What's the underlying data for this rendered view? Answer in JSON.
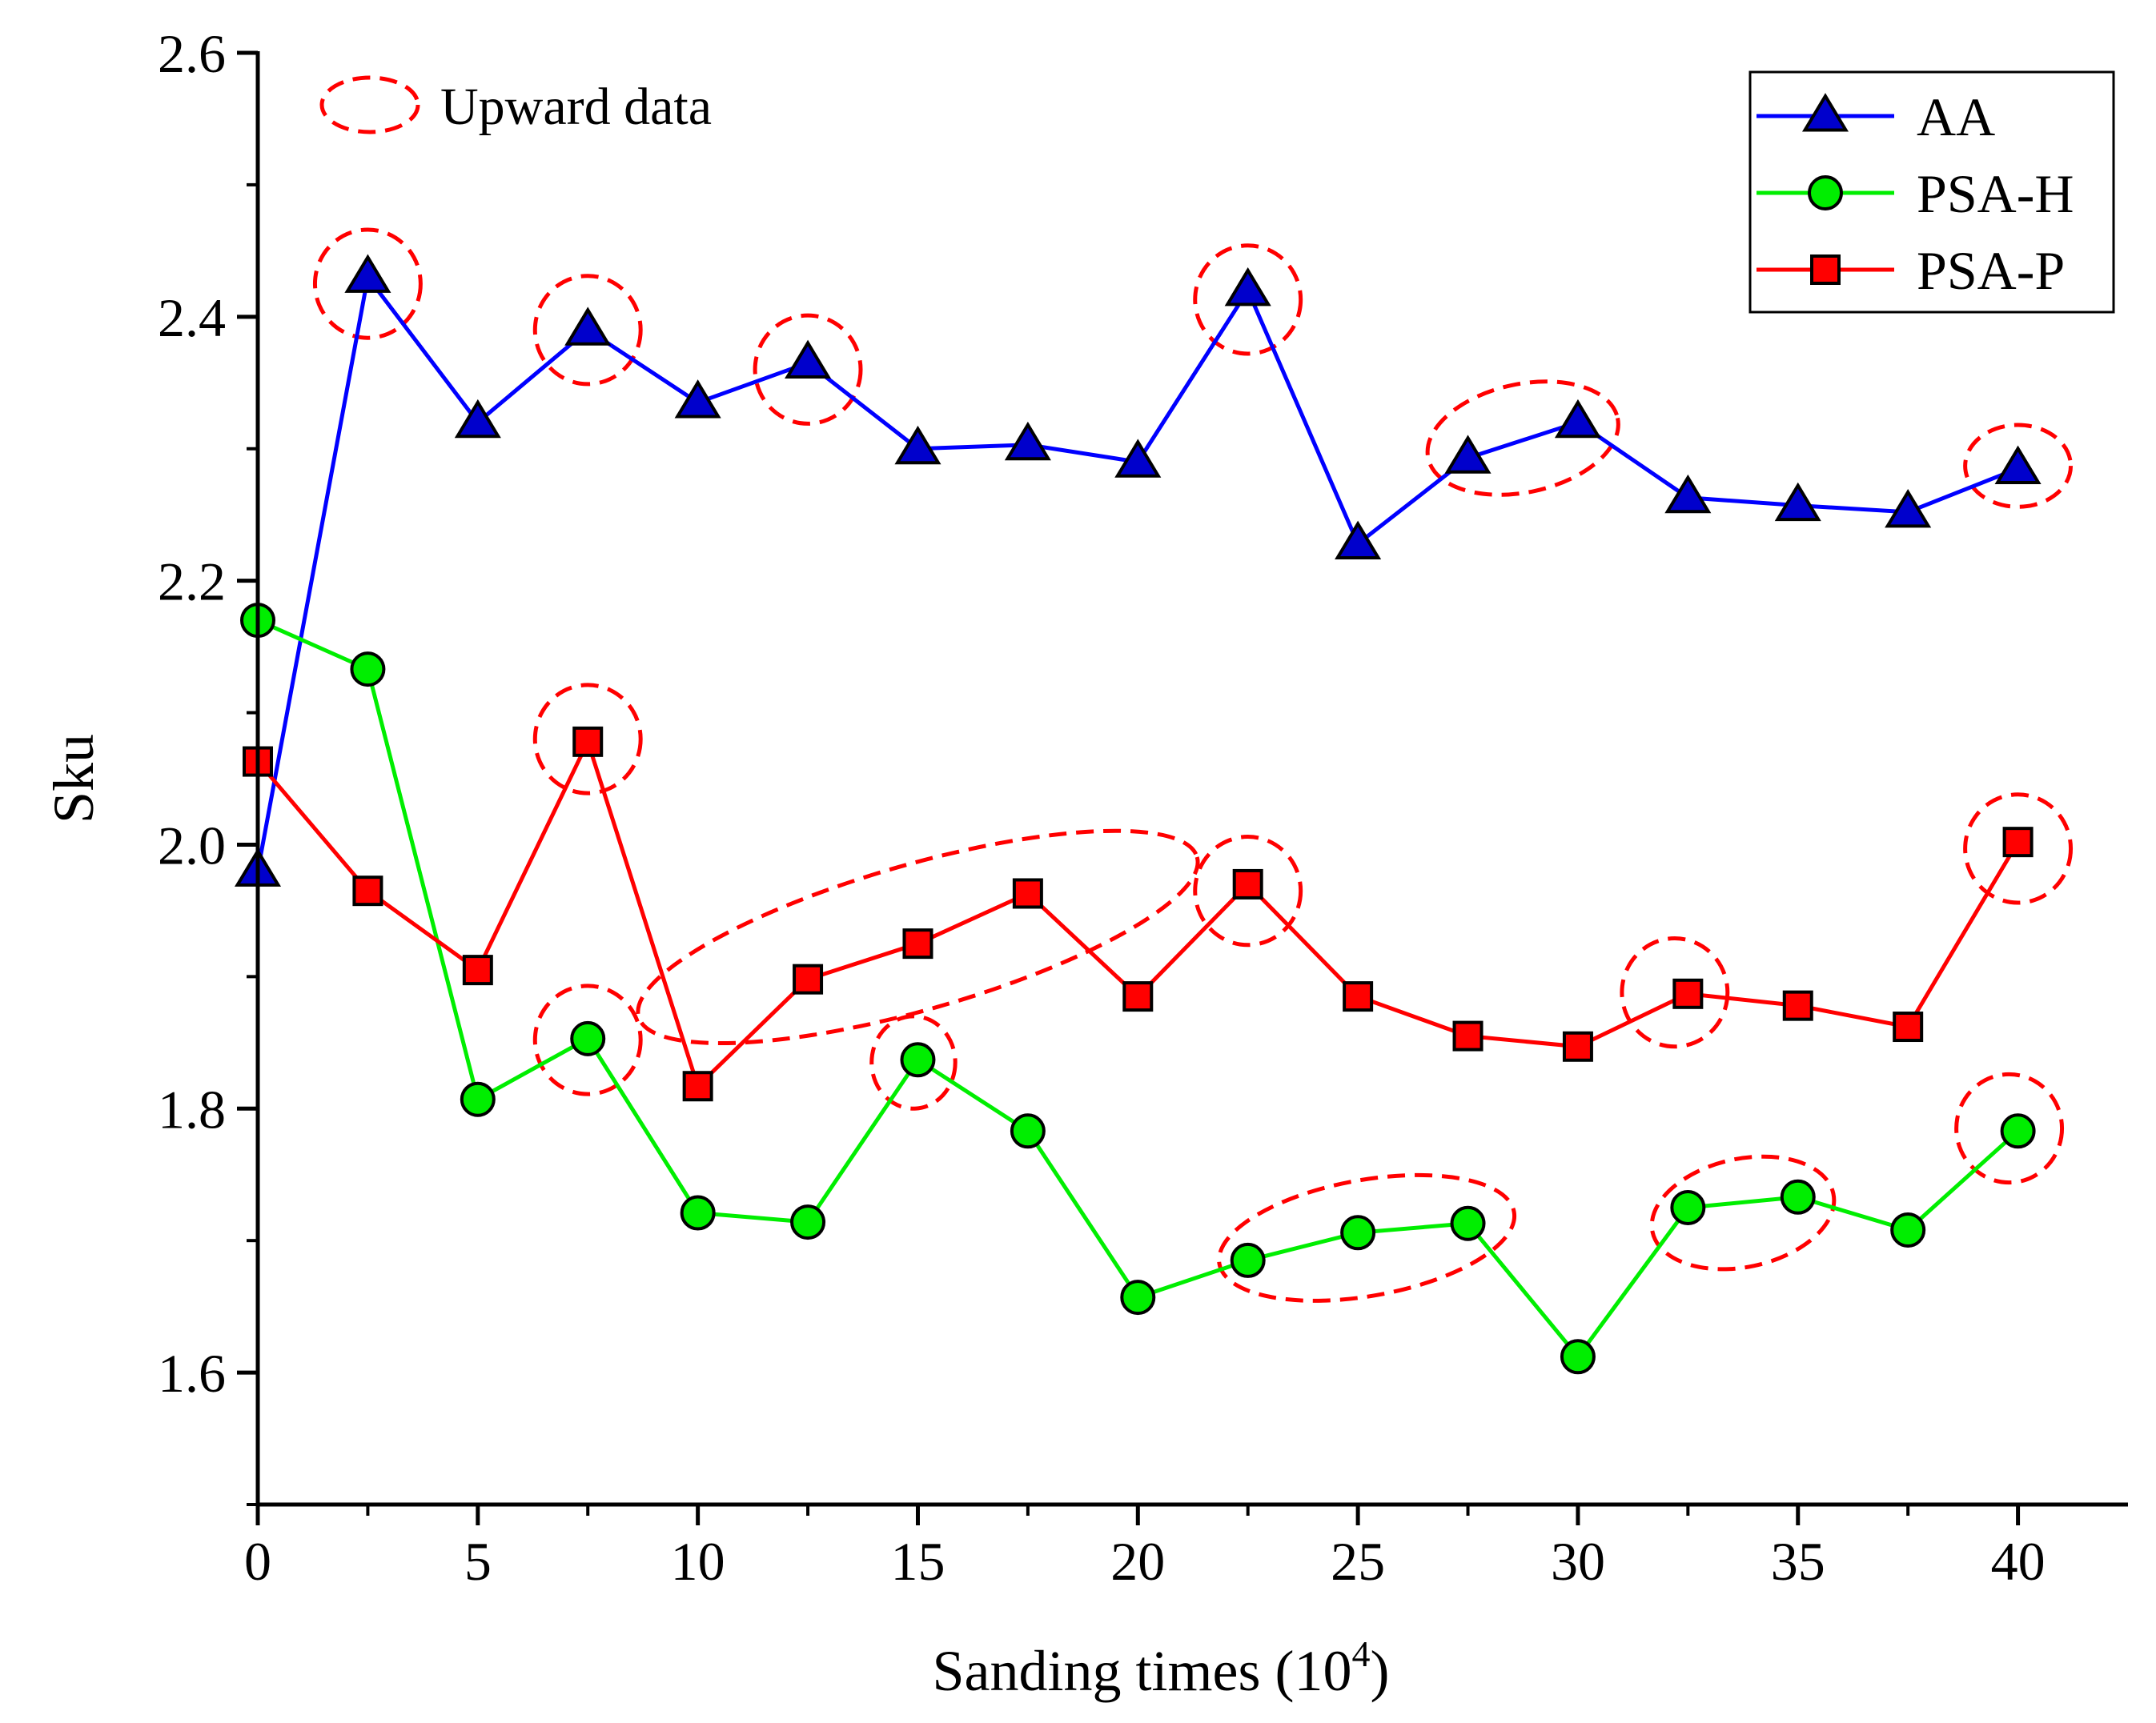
{
  "chart_data": {
    "type": "line",
    "xlabel": "Sanding times (10",
    "xlabel_sup": "4",
    "xlabel_close": ")",
    "ylabel": "Sku",
    "xlim": [
      0,
      42.5
    ],
    "ylim": [
      1.5,
      2.6
    ],
    "x_ticks": [
      0,
      5,
      10,
      15,
      20,
      25,
      30,
      35,
      40
    ],
    "x_tick_labels": [
      "0",
      "5",
      "10",
      "15",
      "20",
      "25",
      "30",
      "35",
      "40"
    ],
    "y_ticks": [
      1.6,
      1.8,
      2.0,
      2.2,
      2.4,
      2.6
    ],
    "y_tick_labels": [
      "1.6",
      "1.8",
      "2.0",
      "2.2",
      "2.4",
      "2.6"
    ],
    "grid": false,
    "legend_position": "top-right",
    "x": [
      0,
      2.5,
      5,
      7.5,
      10,
      12.5,
      15,
      17.5,
      20,
      22.5,
      25,
      27.5,
      30,
      32.5,
      35,
      37.5,
      40
    ],
    "series": [
      {
        "name": "AA",
        "color": "#0000ff",
        "marker": "triangle",
        "marker_fill": "#0000cc",
        "values": [
          1.98,
          2.43,
          2.32,
          2.39,
          2.335,
          2.365,
          2.3,
          2.303,
          2.29,
          2.42,
          2.228,
          2.293,
          2.32,
          2.263,
          2.257,
          2.252,
          2.285
        ]
      },
      {
        "name": "PSA-H",
        "color": "#00ee00",
        "marker": "circle",
        "marker_fill": "#00ee00",
        "values": [
          2.17,
          2.133,
          1.807,
          1.853,
          1.721,
          1.714,
          1.837,
          1.783,
          1.657,
          1.685,
          1.706,
          1.713,
          1.612,
          1.725,
          1.733,
          1.708,
          1.783
        ]
      },
      {
        "name": "PSA-P",
        "color": "#ff0000",
        "marker": "square",
        "marker_fill": "#ff0000",
        "values": [
          2.063,
          1.965,
          1.905,
          2.078,
          1.817,
          1.898,
          1.925,
          1.963,
          1.885,
          1.97,
          1.885,
          1.855,
          1.847,
          1.887,
          1.878,
          1.862,
          2.002
        ]
      }
    ],
    "annotation": {
      "label": "Upward data",
      "color": "#ff0000",
      "highlights": [
        {
          "cx": 2.5,
          "cy": 2.425,
          "rx": 1.2,
          "ry": 0.041,
          "angle": 0
        },
        {
          "cx": 7.5,
          "cy": 2.39,
          "rx": 1.2,
          "ry": 0.041,
          "angle": 0
        },
        {
          "cx": 12.5,
          "cy": 2.36,
          "rx": 1.2,
          "ry": 0.041,
          "angle": 0
        },
        {
          "cx": 22.5,
          "cy": 2.413,
          "rx": 1.2,
          "ry": 0.041,
          "angle": 0
        },
        {
          "cx": 28.75,
          "cy": 2.308,
          "rx": 2.2,
          "ry": 0.041,
          "angle": -12
        },
        {
          "cx": 40,
          "cy": 2.287,
          "rx": 1.2,
          "ry": 0.031,
          "angle": 0
        },
        {
          "cx": 7.5,
          "cy": 2.08,
          "rx": 1.2,
          "ry": 0.041,
          "angle": 0
        },
        {
          "cx": 15,
          "cy": 1.93,
          "rx": 6.6,
          "ry": 0.055,
          "angle": -16
        },
        {
          "cx": 22.5,
          "cy": 1.965,
          "rx": 1.2,
          "ry": 0.041,
          "angle": 0
        },
        {
          "cx": 32.2,
          "cy": 1.888,
          "rx": 1.2,
          "ry": 0.041,
          "angle": 0
        },
        {
          "cx": 40,
          "cy": 1.997,
          "rx": 1.2,
          "ry": 0.041,
          "angle": 0
        },
        {
          "cx": 7.5,
          "cy": 1.852,
          "rx": 1.2,
          "ry": 0.041,
          "angle": 0
        },
        {
          "cx": 14.9,
          "cy": 1.835,
          "rx": 0.95,
          "ry": 0.035,
          "angle": 0
        },
        {
          "cx": 25.2,
          "cy": 1.702,
          "rx": 3.4,
          "ry": 0.044,
          "angle": -10
        },
        {
          "cx": 33.75,
          "cy": 1.721,
          "rx": 2.1,
          "ry": 0.041,
          "angle": -12
        },
        {
          "cx": 39.8,
          "cy": 1.785,
          "rx": 1.2,
          "ry": 0.041,
          "angle": 0
        }
      ]
    }
  }
}
